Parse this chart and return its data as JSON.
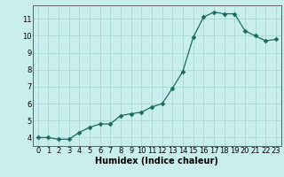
{
  "x": [
    0,
    1,
    2,
    3,
    4,
    5,
    6,
    7,
    8,
    9,
    10,
    11,
    12,
    13,
    14,
    15,
    16,
    17,
    18,
    19,
    20,
    21,
    22,
    23
  ],
  "y": [
    4.0,
    4.0,
    3.9,
    3.9,
    4.3,
    4.6,
    4.8,
    4.8,
    5.3,
    5.4,
    5.5,
    5.8,
    6.0,
    6.9,
    7.9,
    9.9,
    11.1,
    11.4,
    11.3,
    11.3,
    10.3,
    10.0,
    9.7,
    9.8
  ],
  "xlabel": "Humidex (Indice chaleur)",
  "ylim": [
    3.5,
    11.8
  ],
  "xlim": [
    -0.5,
    23.5
  ],
  "yticks": [
    4,
    5,
    6,
    7,
    8,
    9,
    10,
    11
  ],
  "xticks": [
    0,
    1,
    2,
    3,
    4,
    5,
    6,
    7,
    8,
    9,
    10,
    11,
    12,
    13,
    14,
    15,
    16,
    17,
    18,
    19,
    20,
    21,
    22,
    23
  ],
  "line_color": "#1a6b5e",
  "marker_color": "#1a6b5e",
  "bg_color": "#c8eeee",
  "grid_color": "#a8d8d0",
  "tick_label_fontsize": 6.0,
  "xlabel_fontsize": 7.0,
  "marker_size": 2.5,
  "linewidth": 0.9
}
